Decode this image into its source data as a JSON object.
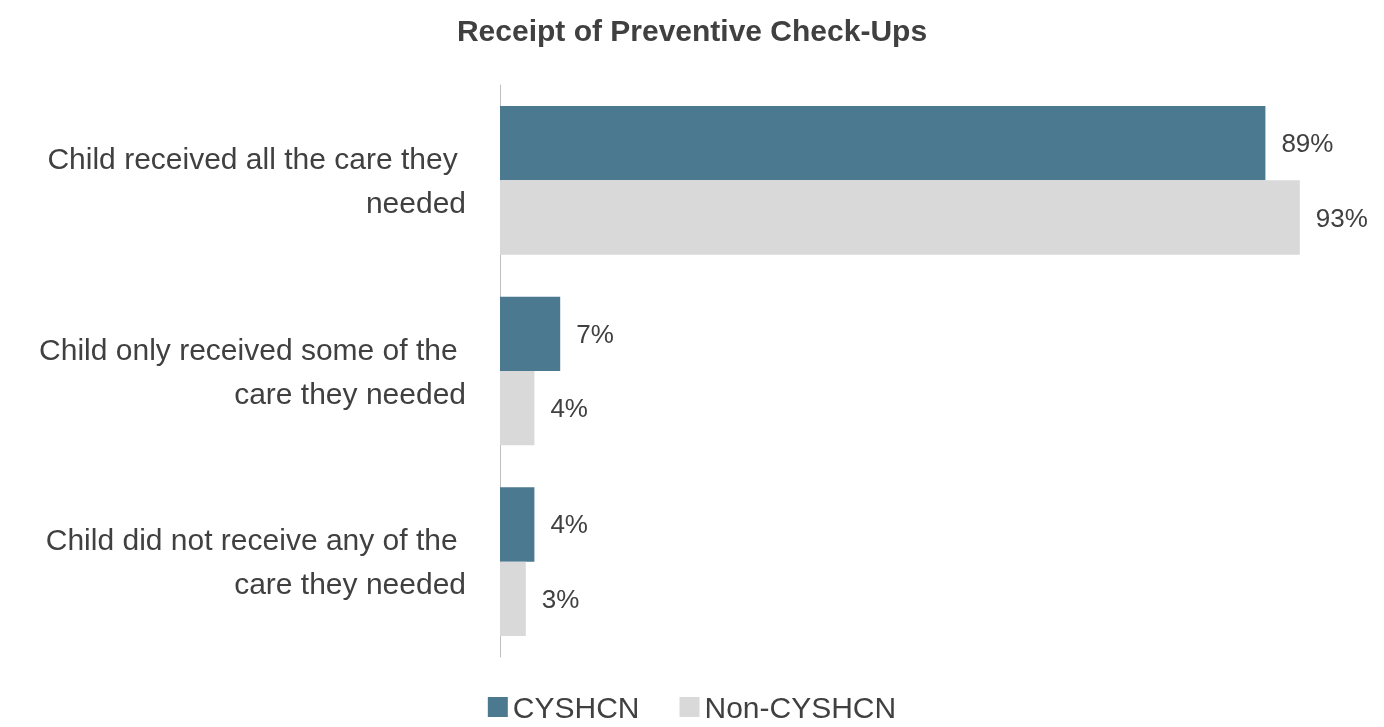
{
  "chart_data": {
    "type": "bar",
    "orientation": "horizontal",
    "title": "Receipt of Preventive Check-Ups",
    "categories": [
      "Child received all the care they needed",
      "Child only received some of the care they needed",
      "Child did not receive any of the care they needed"
    ],
    "series": [
      {
        "name": "CYSHCN",
        "color": "#4a7990",
        "values": [
          89,
          7,
          4
        ],
        "value_labels": [
          "89%",
          "7%",
          "4%"
        ]
      },
      {
        "name": "Non-CYSHCN",
        "color": "#d9d9d9",
        "values": [
          93,
          4,
          3
        ],
        "value_labels": [
          "93%",
          "4%",
          "3%"
        ]
      }
    ],
    "legend": "bottom"
  }
}
